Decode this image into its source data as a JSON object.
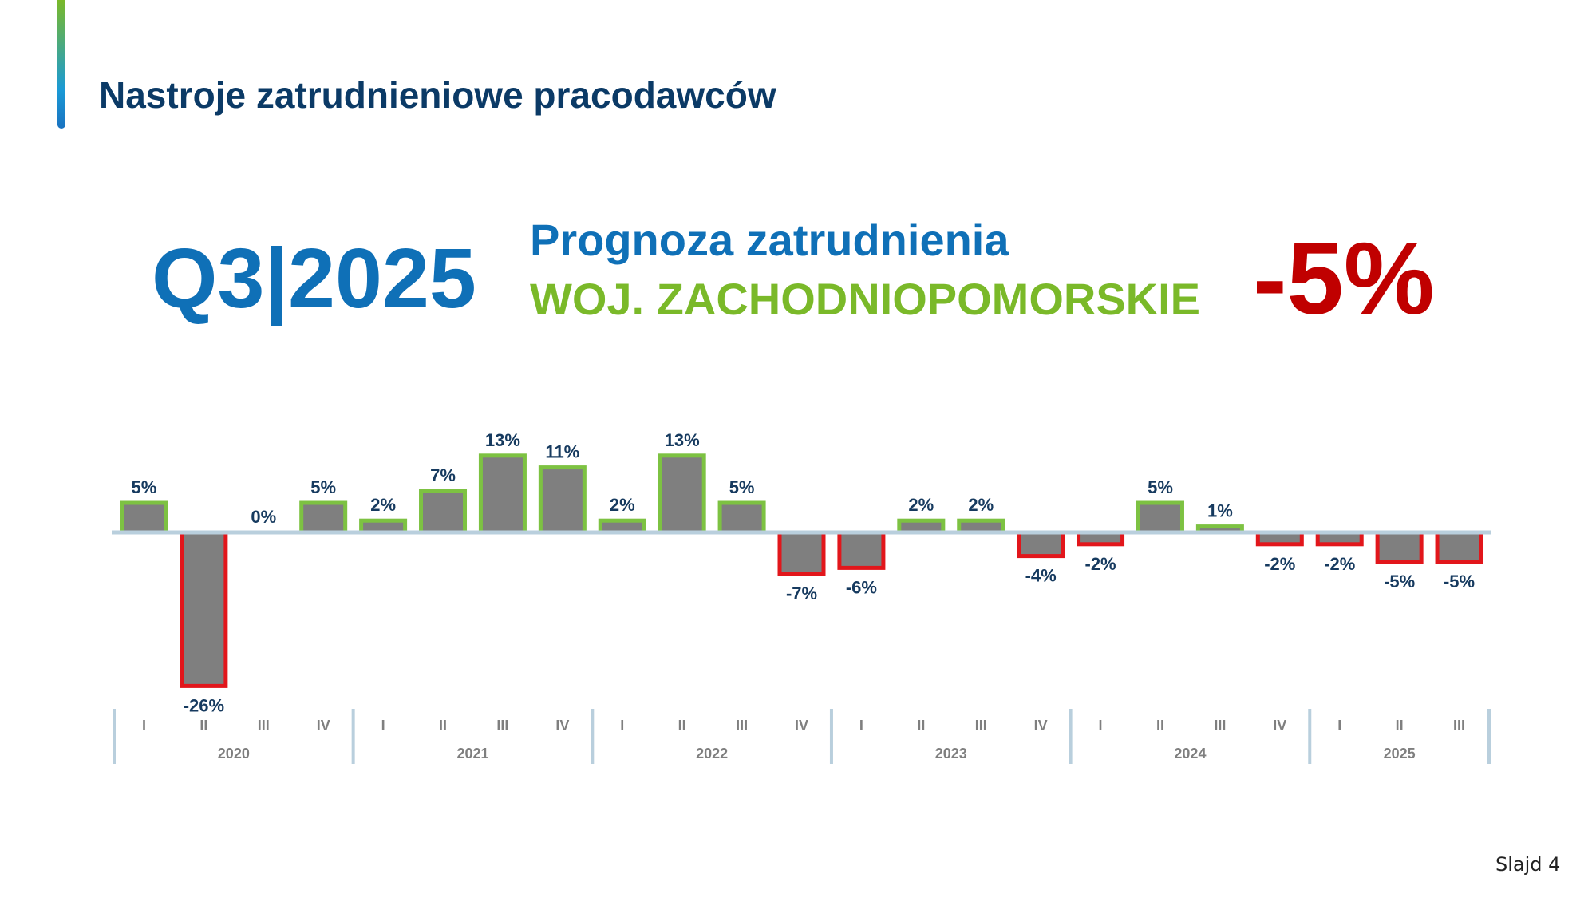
{
  "header": {
    "title": "Nastroje zatrudnieniowe pracodawców"
  },
  "hero": {
    "quarter": "Q3|2025",
    "forecast_label": "Prognoza zatrudnienia",
    "region": "WOJ. ZACHODNIOPOMORSKIE",
    "forecast_value": "-5%"
  },
  "footer": {
    "slide_number": "Slajd 4"
  },
  "colors": {
    "positive_border": "#7dc242",
    "negative_border": "#e2161b",
    "bar_fill": "#7f7f7f",
    "axis": "#b9cfdd",
    "value_label": "#163a5f",
    "axis_label": "#7f7f7f"
  },
  "chart_data": {
    "type": "bar",
    "categories": [
      "I",
      "II",
      "III",
      "IV",
      "I",
      "II",
      "III",
      "IV",
      "I",
      "II",
      "III",
      "IV",
      "I",
      "II",
      "III",
      "IV",
      "I",
      "II",
      "III",
      "IV",
      "I",
      "II",
      "III"
    ],
    "groups": [
      {
        "label": "2020",
        "count": 4
      },
      {
        "label": "2021",
        "count": 4
      },
      {
        "label": "2022",
        "count": 4
      },
      {
        "label": "2023",
        "count": 4
      },
      {
        "label": "2024",
        "count": 4
      },
      {
        "label": "2025",
        "count": 3
      }
    ],
    "values": [
      5,
      -26,
      0,
      5,
      2,
      7,
      13,
      11,
      2,
      13,
      5,
      -7,
      -6,
      2,
      2,
      -4,
      -2,
      5,
      1,
      -2,
      -2,
      -5,
      -5
    ],
    "labels": [
      "5%",
      "-26%",
      "0%",
      "5%",
      "2%",
      "7%",
      "13%",
      "11%",
      "2%",
      "13%",
      "5%",
      "-7%",
      "-6%",
      "2%",
      "2%",
      "-4%",
      "-2%",
      "5%",
      "1%",
      "-2%",
      "-2%",
      "-5%",
      "-5%"
    ],
    "ylim": [
      -26,
      13
    ],
    "grid": false,
    "legend": "none"
  }
}
